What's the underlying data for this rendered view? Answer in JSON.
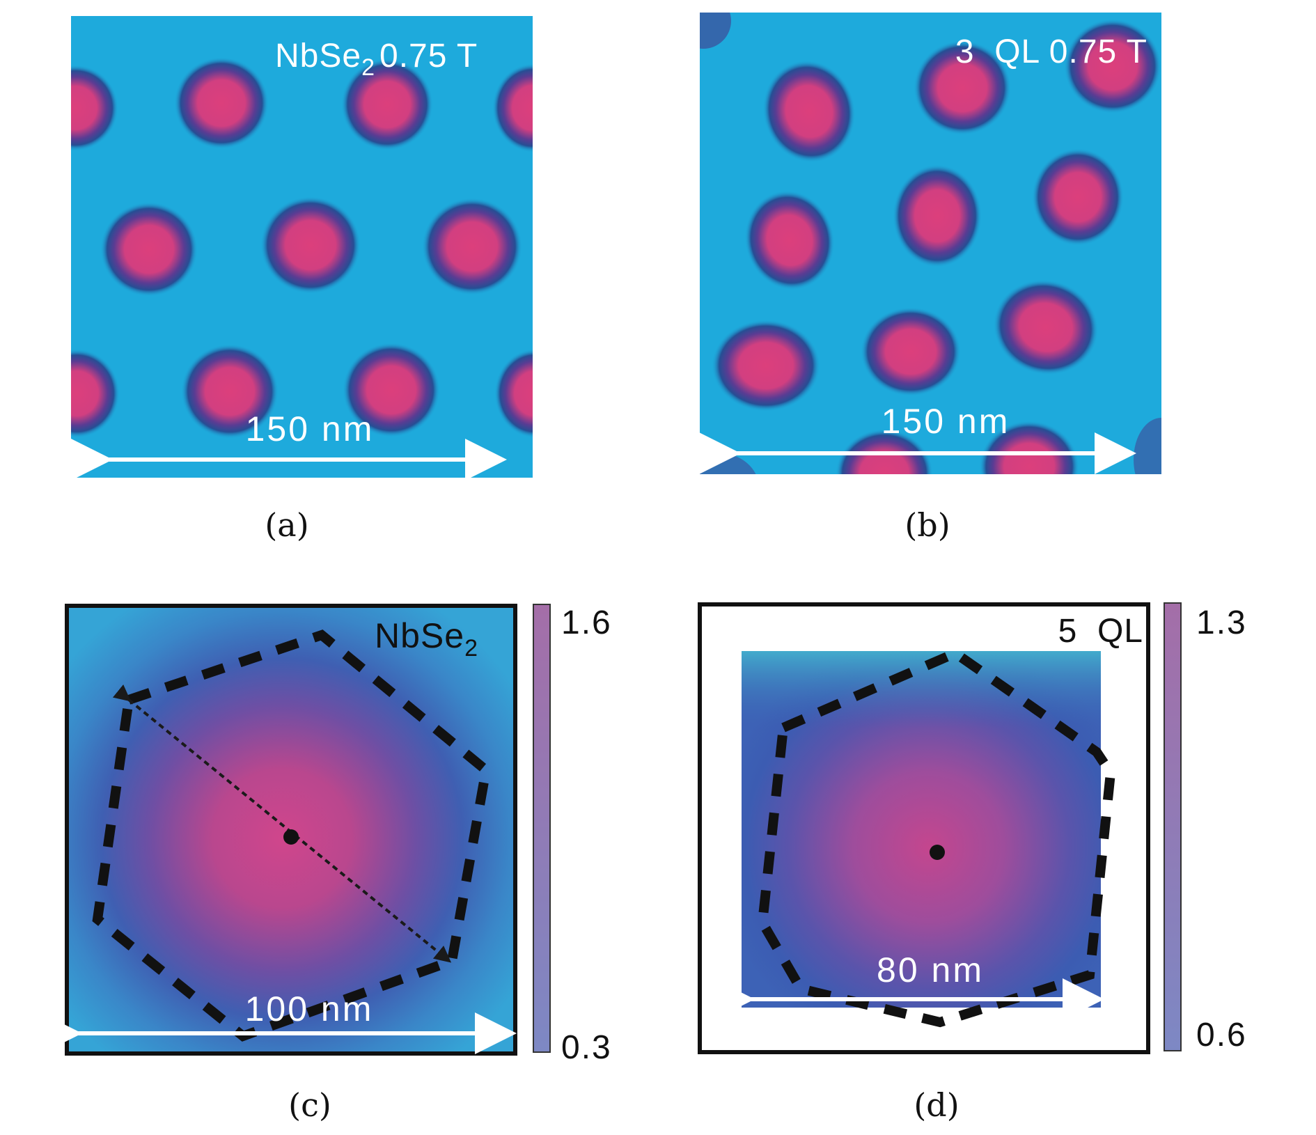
{
  "panels": {
    "a": {
      "caption": "(a)",
      "title_main": "NbSe",
      "title_sub": "2",
      "title_rest": "0.75 T",
      "scale_label": "150 nm"
    },
    "b": {
      "caption": "(b)",
      "title": "3  QL 0.75 T",
      "scale_label": "150 nm"
    },
    "c": {
      "caption": "(c)",
      "title_main": "NbSe",
      "title_sub": "2",
      "scale_label": "100 nm",
      "colorbar_max": "1.6",
      "colorbar_min": "0.3"
    },
    "d": {
      "caption": "(d)",
      "title": "5  QL",
      "scale_label": "80 nm",
      "colorbar_max": "1.3",
      "colorbar_min": "0.6"
    }
  },
  "colors": {
    "background_cyan": "#1eaadc",
    "vortex_core": "#d8407f",
    "vortex_ring": "#2a4f95",
    "map_blue": "#3a73c0",
    "map_pink": "#cc4a8e"
  }
}
